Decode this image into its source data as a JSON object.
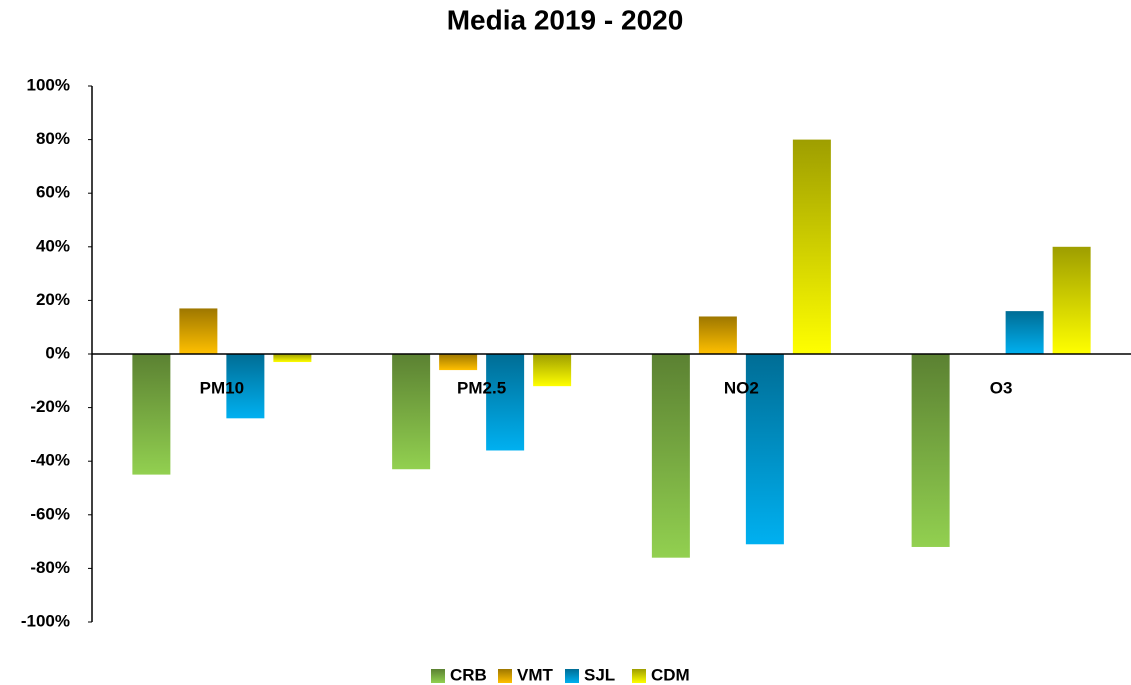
{
  "chart_data": {
    "type": "bar",
    "title": "Media 2019 - 2020",
    "categories": [
      "PM10",
      "PM2.5",
      "NO2",
      "O3"
    ],
    "series": [
      {
        "name": "CRB",
        "color": "#92d050",
        "values": [
          -45,
          -43,
          -76,
          -72
        ]
      },
      {
        "name": "VMT",
        "color": "#ffc000",
        "values": [
          17,
          -6,
          14,
          null
        ]
      },
      {
        "name": "SJL",
        "color": "#00b0f0",
        "values": [
          -24,
          -36,
          -71,
          16
        ]
      },
      {
        "name": "CDM",
        "color": "#ffff00",
        "values": [
          -3,
          -12,
          80,
          40
        ]
      }
    ],
    "ylim": [
      -100,
      100
    ],
    "yticks": [
      {
        "value": -100,
        "label": "-100%"
      },
      {
        "value": -80,
        "label": "-80%"
      },
      {
        "value": -60,
        "label": "-60%"
      },
      {
        "value": -40,
        "label": "-40%"
      },
      {
        "value": -20,
        "label": "-20%"
      },
      {
        "value": 0,
        "label": "0%"
      },
      {
        "value": 20,
        "label": "20%"
      },
      {
        "value": 40,
        "label": "40%"
      },
      {
        "value": 60,
        "label": "60%"
      },
      {
        "value": 80,
        "label": "80%"
      },
      {
        "value": 100,
        "label": "100%"
      }
    ],
    "grid": false,
    "legend": "bottom"
  }
}
